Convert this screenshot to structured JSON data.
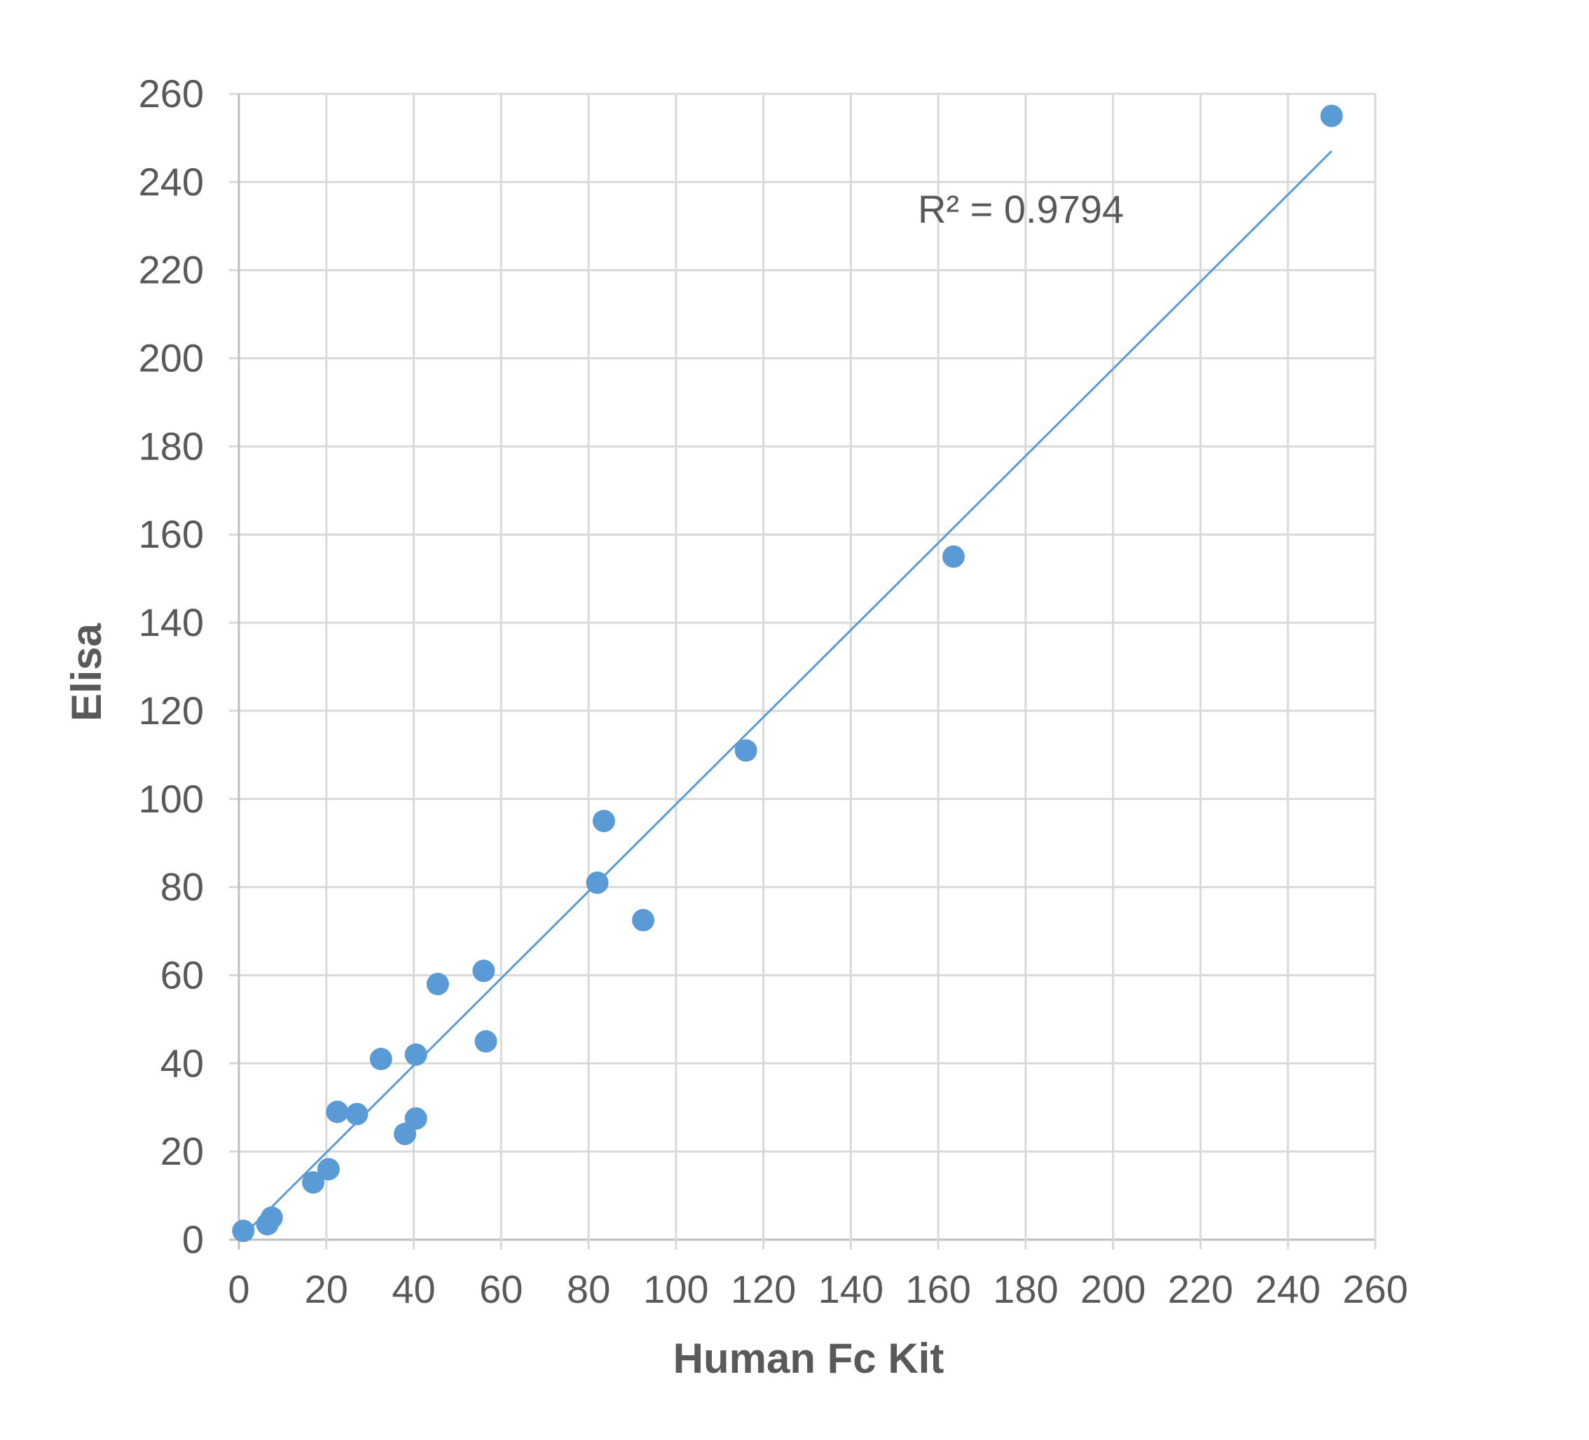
{
  "chart_data": {
    "type": "scatter",
    "title": "",
    "xlabel": "Human Fc Kit",
    "ylabel": "Elisa",
    "xlim": [
      0,
      260
    ],
    "ylim": [
      0,
      260
    ],
    "xticks": [
      "0",
      "20",
      "40",
      "60",
      "80",
      "100",
      "120",
      "140",
      "160",
      "180",
      "200",
      "220",
      "240",
      "260"
    ],
    "yticks": [
      "0",
      "20",
      "40",
      "60",
      "80",
      "100",
      "120",
      "140",
      "160",
      "180",
      "200",
      "220",
      "240",
      "260"
    ],
    "grid": true,
    "marker_color": "#5b9bd5",
    "trendline_color": "#5b9bd5",
    "annotation": "R² = 0.9794",
    "trendline": {
      "x": [
        1,
        250
      ],
      "y": [
        1,
        247
      ]
    },
    "points": [
      {
        "x": 1,
        "y": 2
      },
      {
        "x": 6.5,
        "y": 3.5
      },
      {
        "x": 7.5,
        "y": 5
      },
      {
        "x": 17,
        "y": 13
      },
      {
        "x": 20.5,
        "y": 16
      },
      {
        "x": 22.5,
        "y": 29
      },
      {
        "x": 27,
        "y": 28.5
      },
      {
        "x": 32.5,
        "y": 41
      },
      {
        "x": 38,
        "y": 24
      },
      {
        "x": 40.5,
        "y": 27.5
      },
      {
        "x": 40.5,
        "y": 42
      },
      {
        "x": 45.5,
        "y": 58
      },
      {
        "x": 56,
        "y": 61
      },
      {
        "x": 56.5,
        "y": 45
      },
      {
        "x": 82,
        "y": 81
      },
      {
        "x": 83.5,
        "y": 95
      },
      {
        "x": 92.5,
        "y": 72.5
      },
      {
        "x": 116,
        "y": 111
      },
      {
        "x": 163.5,
        "y": 155
      },
      {
        "x": 250,
        "y": 255
      }
    ]
  }
}
